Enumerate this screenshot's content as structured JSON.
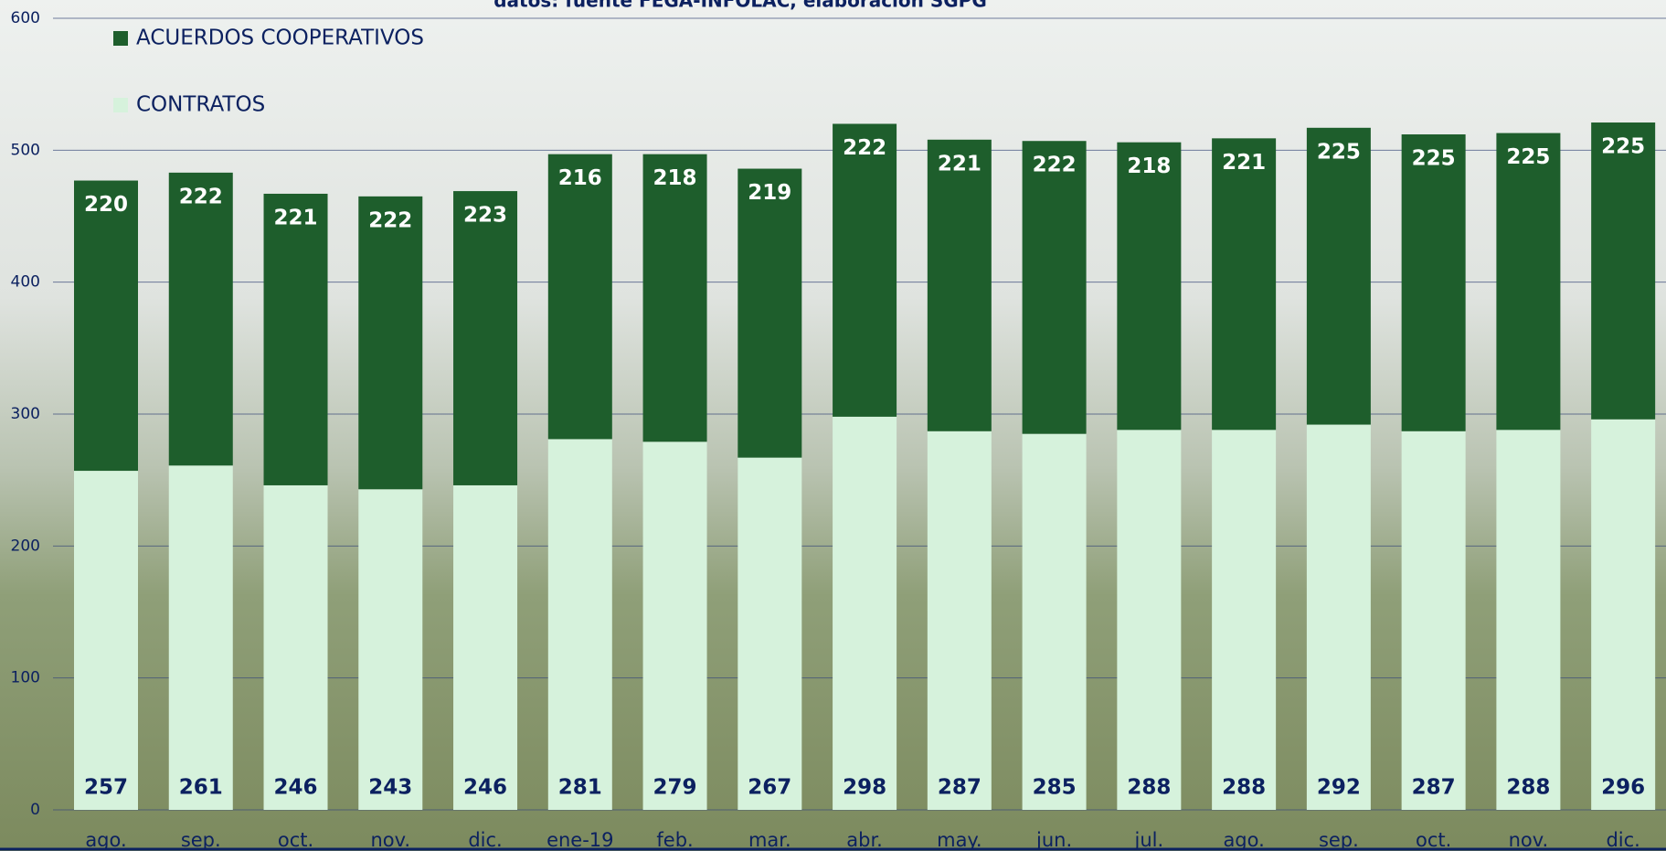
{
  "chart_data": {
    "type": "stacked_bar",
    "subtitle": "datos: fuente FEGA-INFOLAC, elaboración SGPG",
    "categories": [
      "ago.",
      "sep.",
      "oct.",
      "nov.",
      "dic.",
      "ene-19",
      "feb.",
      "mar.",
      "abr.",
      "may.",
      "jun.",
      "jul.",
      "ago.",
      "sep.",
      "oct.",
      "nov.",
      "dic."
    ],
    "series": [
      {
        "name": "CONTRATOS",
        "color": "#d6f2dc",
        "label_color": "#0c2160",
        "values": [
          257,
          261,
          246,
          243,
          246,
          281,
          279,
          267,
          298,
          287,
          285,
          288,
          288,
          292,
          287,
          288,
          296
        ]
      },
      {
        "name": "ACUERDOS COOPERATIVOS",
        "color": "#1e5e2c",
        "label_color": "#ffffff",
        "values": [
          220,
          222,
          221,
          222,
          223,
          216,
          218,
          219,
          222,
          221,
          222,
          218,
          221,
          225,
          225,
          225,
          225
        ]
      }
    ],
    "ylim": [
      0,
      600
    ],
    "yticks": [
      0,
      100,
      200,
      300,
      400,
      500,
      600
    ],
    "grid": true
  }
}
